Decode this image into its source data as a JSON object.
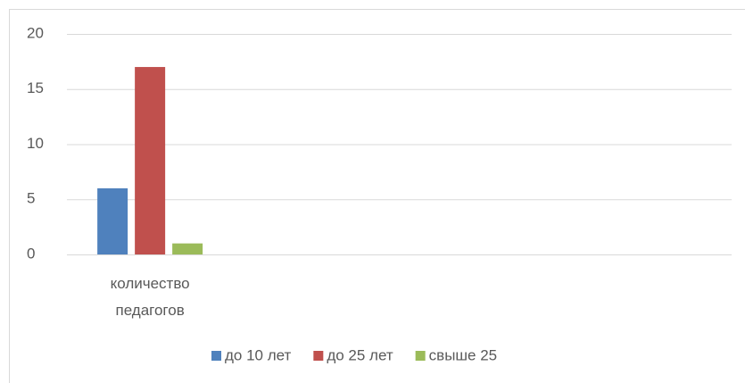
{
  "chart_data": {
    "type": "bar",
    "categories": [
      "количество педагогов",
      null,
      null,
      null
    ],
    "series": [
      {
        "name": "до 10 лет",
        "color": "#4f81bd",
        "values": [
          6,
          null,
          null,
          null
        ]
      },
      {
        "name": "до 25 лет",
        "color": "#c0504d",
        "values": [
          17,
          null,
          null,
          null
        ]
      },
      {
        "name": "свыше 25",
        "color": "#9bbb59",
        "values": [
          1,
          null,
          null,
          null
        ]
      }
    ],
    "ylim": [
      0,
      20
    ],
    "yticks": [
      0,
      5,
      10,
      15,
      20
    ],
    "grid": true,
    "legend": "bottom"
  }
}
